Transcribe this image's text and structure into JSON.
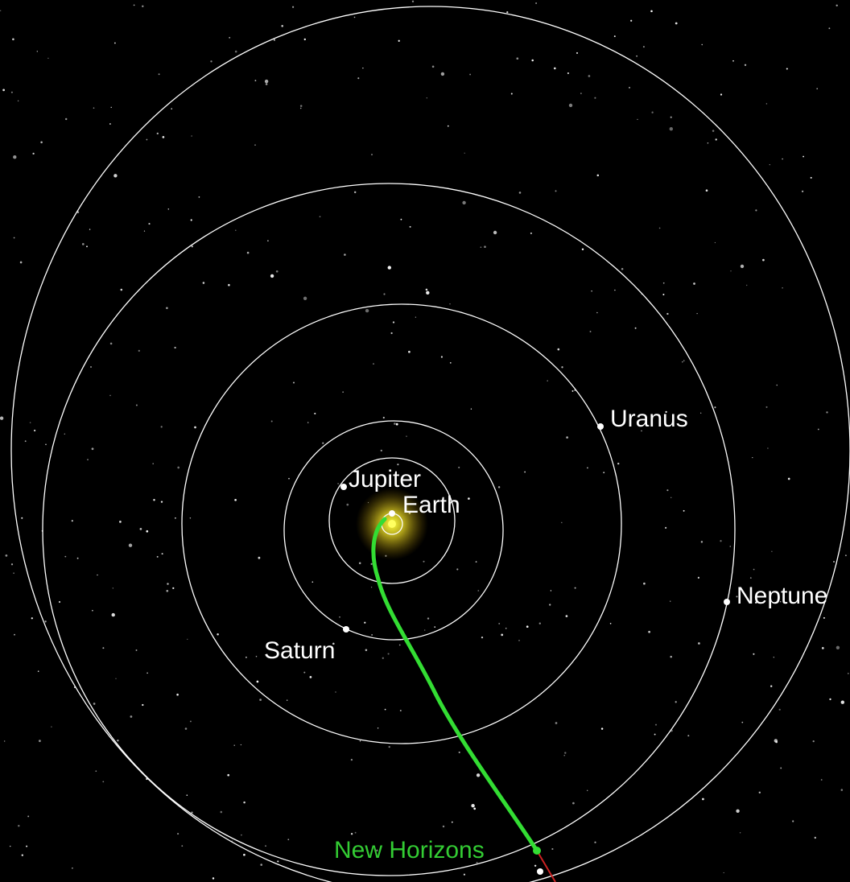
{
  "labels": {
    "jupiter": "Jupiter",
    "earth": "Earth",
    "saturn": "Saturn",
    "uranus": "Uranus",
    "neptune": "Neptune",
    "spacecraft": "New Horizons"
  }
}
